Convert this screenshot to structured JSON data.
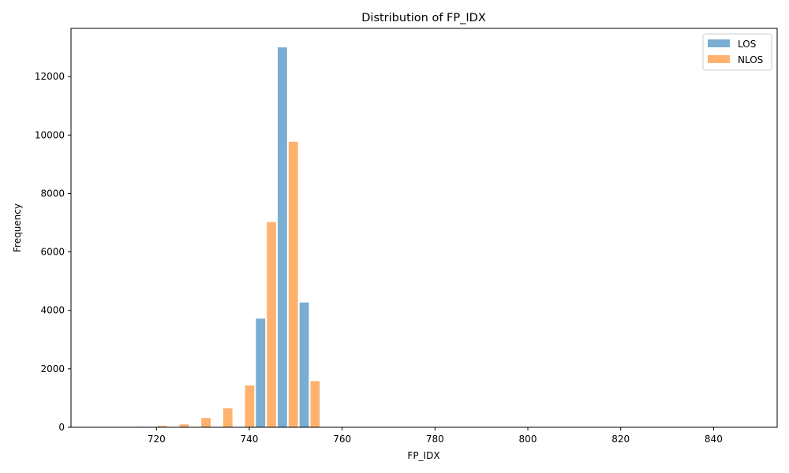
{
  "chart_data": {
    "type": "bar",
    "title": "Distribution of FP_IDX",
    "xlabel": "FP_IDX",
    "ylabel": "Frequency",
    "xlim": [
      701.6,
      853.7
    ],
    "ylim": [
      0,
      13650
    ],
    "xticks": [
      720,
      740,
      760,
      780,
      800,
      820,
      840
    ],
    "yticks": [
      0,
      2000,
      4000,
      6000,
      8000,
      10000,
      12000
    ],
    "grid": false,
    "legend_position": "top-right",
    "bin_width": 4.7,
    "x": [
      710.7,
      715.4,
      720.1,
      724.8,
      729.5,
      734.2,
      738.9,
      743.6,
      748.3,
      753.0
    ],
    "series": [
      {
        "name": "LOS",
        "color": "#1f77b4",
        "values": [
          0,
          0,
          0,
          0,
          5,
          10,
          0,
          3720,
          13000,
          4270
        ]
      },
      {
        "name": "NLOS",
        "color": "#ff7f0e",
        "values": [
          0,
          20,
          50,
          100,
          320,
          650,
          1430,
          7020,
          9770,
          1580
        ]
      }
    ]
  }
}
